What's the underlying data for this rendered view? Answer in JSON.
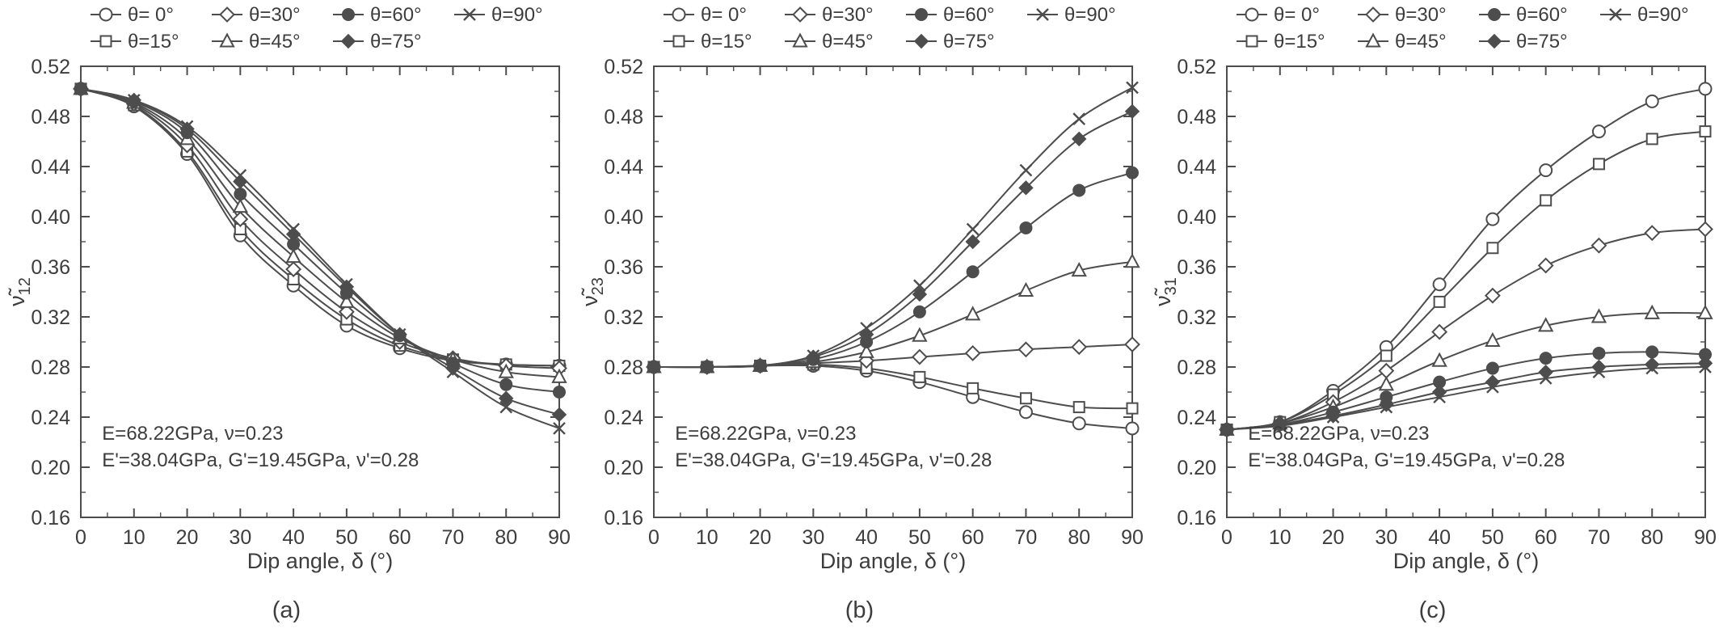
{
  "colors": {
    "line": "#4d4d4d",
    "axis": "#4d4d4d",
    "text": "#3d3d3d"
  },
  "chart_data": [
    {
      "type": "line",
      "caption": "(a)",
      "xlabel": "Dip angle, δ (°)",
      "ylabel": "ν̃",
      "ylabel_sub": "12",
      "xlim": [
        0,
        90
      ],
      "ylim": [
        0.16,
        0.52
      ],
      "x_major": 10,
      "x_minor": 5,
      "y_major": 0.04,
      "y_minor": 0.02,
      "legend_position": "top",
      "grid": false,
      "x": [
        0,
        10,
        20,
        30,
        40,
        50,
        60,
        70,
        80,
        90
      ],
      "series": [
        {
          "name": "θ= 0°",
          "marker": "circle-open",
          "values": [
            0.502,
            0.488,
            0.45,
            0.385,
            0.345,
            0.313,
            0.295,
            0.285,
            0.282,
            0.281
          ]
        },
        {
          "name": "θ=15°",
          "marker": "square-open",
          "values": [
            0.502,
            0.489,
            0.452,
            0.39,
            0.35,
            0.318,
            0.297,
            0.286,
            0.282,
            0.281
          ]
        },
        {
          "name": "θ=30°",
          "marker": "diamond-open",
          "values": [
            0.502,
            0.49,
            0.457,
            0.398,
            0.358,
            0.324,
            0.3,
            0.287,
            0.281,
            0.279
          ]
        },
        {
          "name": "θ=45°",
          "marker": "triangle-open",
          "values": [
            0.502,
            0.491,
            0.462,
            0.408,
            0.368,
            0.332,
            0.303,
            0.286,
            0.276,
            0.272
          ]
        },
        {
          "name": "θ=60°",
          "marker": "circle-filled",
          "values": [
            0.502,
            0.492,
            0.467,
            0.418,
            0.378,
            0.339,
            0.305,
            0.283,
            0.266,
            0.26
          ]
        },
        {
          "name": "θ=75°",
          "marker": "diamond-filled",
          "values": [
            0.502,
            0.493,
            0.47,
            0.428,
            0.386,
            0.344,
            0.306,
            0.279,
            0.255,
            0.242
          ]
        },
        {
          "name": "θ=90°",
          "marker": "x",
          "values": [
            0.502,
            0.493,
            0.472,
            0.433,
            0.39,
            0.346,
            0.306,
            0.276,
            0.248,
            0.231
          ]
        }
      ],
      "annotations": [
        "E=68.22GPa, ν=0.23",
        "E'=38.04GPa, G'=19.45GPa, ν'=0.28"
      ]
    },
    {
      "type": "line",
      "caption": "(b)",
      "xlabel": "Dip angle, δ (°)",
      "ylabel": "ν̃",
      "ylabel_sub": "23",
      "xlim": [
        0,
        90
      ],
      "ylim": [
        0.16,
        0.52
      ],
      "x_major": 10,
      "x_minor": 5,
      "y_major": 0.04,
      "y_minor": 0.02,
      "legend_position": "top",
      "grid": false,
      "x": [
        0,
        10,
        20,
        30,
        40,
        50,
        60,
        70,
        80,
        90
      ],
      "series": [
        {
          "name": "θ= 0°",
          "marker": "circle-open",
          "values": [
            0.28,
            0.28,
            0.281,
            0.281,
            0.277,
            0.268,
            0.256,
            0.244,
            0.235,
            0.231
          ]
        },
        {
          "name": "θ=15°",
          "marker": "square-open",
          "values": [
            0.28,
            0.28,
            0.281,
            0.282,
            0.279,
            0.272,
            0.263,
            0.255,
            0.248,
            0.247
          ]
        },
        {
          "name": "θ=30°",
          "marker": "diamond-open",
          "values": [
            0.28,
            0.28,
            0.281,
            0.283,
            0.285,
            0.288,
            0.291,
            0.294,
            0.296,
            0.298
          ]
        },
        {
          "name": "θ=45°",
          "marker": "triangle-open",
          "values": [
            0.28,
            0.28,
            0.281,
            0.284,
            0.292,
            0.305,
            0.322,
            0.341,
            0.357,
            0.364
          ]
        },
        {
          "name": "θ=60°",
          "marker": "circle-filled",
          "values": [
            0.28,
            0.28,
            0.281,
            0.286,
            0.3,
            0.324,
            0.356,
            0.391,
            0.421,
            0.435
          ]
        },
        {
          "name": "θ=75°",
          "marker": "diamond-filled",
          "values": [
            0.28,
            0.28,
            0.281,
            0.288,
            0.306,
            0.338,
            0.38,
            0.423,
            0.462,
            0.484
          ]
        },
        {
          "name": "θ=90°",
          "marker": "x",
          "values": [
            0.28,
            0.28,
            0.281,
            0.289,
            0.311,
            0.345,
            0.39,
            0.437,
            0.478,
            0.503
          ]
        }
      ],
      "annotations": [
        "E=68.22GPa, ν=0.23",
        "E'=38.04GPa, G'=19.45GPa, ν'=0.28"
      ]
    },
    {
      "type": "line",
      "caption": "(c)",
      "xlabel": "Dip angle, δ (°)",
      "ylabel": "ν̃",
      "ylabel_sub": "31",
      "xlim": [
        0,
        90
      ],
      "ylim": [
        0.16,
        0.52
      ],
      "x_major": 10,
      "x_minor": 5,
      "y_major": 0.04,
      "y_minor": 0.02,
      "legend_position": "top",
      "grid": false,
      "x": [
        0,
        10,
        20,
        30,
        40,
        50,
        60,
        70,
        80,
        90
      ],
      "series": [
        {
          "name": "θ= 0°",
          "marker": "circle-open",
          "values": [
            0.23,
            0.236,
            0.261,
            0.296,
            0.346,
            0.398,
            0.437,
            0.468,
            0.492,
            0.502
          ]
        },
        {
          "name": "θ=15°",
          "marker": "square-open",
          "values": [
            0.23,
            0.236,
            0.258,
            0.289,
            0.332,
            0.375,
            0.413,
            0.442,
            0.462,
            0.468
          ]
        },
        {
          "name": "θ=30°",
          "marker": "diamond-open",
          "values": [
            0.23,
            0.235,
            0.252,
            0.277,
            0.308,
            0.337,
            0.361,
            0.377,
            0.387,
            0.39
          ]
        },
        {
          "name": "θ=45°",
          "marker": "triangle-open",
          "values": [
            0.23,
            0.235,
            0.248,
            0.266,
            0.285,
            0.301,
            0.313,
            0.32,
            0.323,
            0.323
          ]
        },
        {
          "name": "θ=60°",
          "marker": "circle-filled",
          "values": [
            0.23,
            0.234,
            0.244,
            0.256,
            0.268,
            0.279,
            0.287,
            0.291,
            0.292,
            0.29
          ]
        },
        {
          "name": "θ=75°",
          "marker": "diamond-filled",
          "values": [
            0.23,
            0.234,
            0.241,
            0.25,
            0.26,
            0.268,
            0.276,
            0.28,
            0.282,
            0.283
          ]
        },
        {
          "name": "θ=90°",
          "marker": "x",
          "values": [
            0.23,
            0.233,
            0.24,
            0.248,
            0.256,
            0.264,
            0.271,
            0.276,
            0.279,
            0.28
          ]
        }
      ],
      "annotations": [
        "E=68.22GPa, ν=0.23",
        "E'=38.04GPa, G'=19.45GPa, ν'=0.28"
      ]
    }
  ]
}
